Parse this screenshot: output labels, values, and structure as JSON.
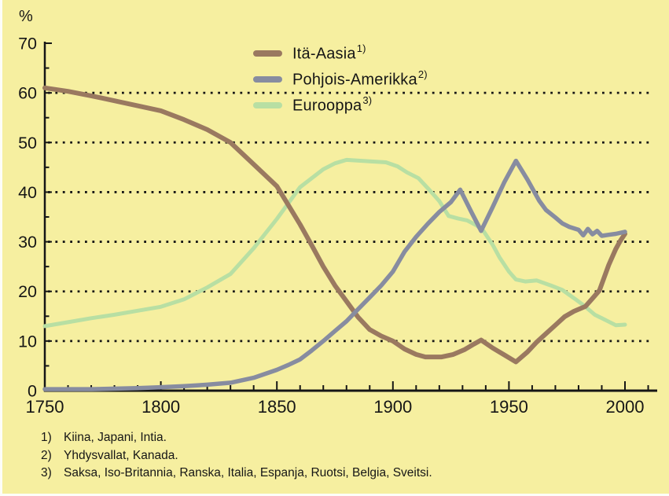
{
  "page": {
    "background_color": "#f6efa0",
    "text_color": "#161616"
  },
  "chart_data": {
    "type": "line",
    "title": "",
    "xlabel": "",
    "ylabel": "%",
    "y_axis": {
      "unit_label": "%",
      "min": 0,
      "max": 70,
      "major_tick_step": 10,
      "minor_tick_step": 5,
      "major_ticks": [
        0,
        10,
        20,
        30,
        40,
        50,
        60,
        70
      ],
      "gridlines": [
        10,
        20,
        30,
        40,
        50,
        60
      ],
      "grid_style": "dotted"
    },
    "x_axis": {
      "min": 1750,
      "max": 2000,
      "major_tick_step": 50,
      "minor_tick_step": 10,
      "major_ticks": [
        1750,
        1800,
        1850,
        1900,
        1950,
        2000
      ]
    },
    "legend": [
      {
        "label": "Itä-Aasia",
        "footnote_ref": "1)",
        "color": "#9a7960"
      },
      {
        "label": "Pohjois-Amerikka",
        "footnote_ref": "2)",
        "color": "#878ca0"
      },
      {
        "label": "Eurooppa",
        "footnote_ref": "3)",
        "color": "#b8dfa3"
      }
    ],
    "series": [
      {
        "name": "Itä-Aasia",
        "color": "#9a7960",
        "stroke_width": 6,
        "z_index": 2,
        "points": [
          [
            1750,
            61
          ],
          [
            1760,
            60.3
          ],
          [
            1770,
            59.4
          ],
          [
            1780,
            58.4
          ],
          [
            1790,
            57.4
          ],
          [
            1800,
            56.4
          ],
          [
            1810,
            54.6
          ],
          [
            1820,
            52.6
          ],
          [
            1830,
            50
          ],
          [
            1840,
            45.6
          ],
          [
            1850,
            41.2
          ],
          [
            1860,
            33.5
          ],
          [
            1865,
            29.3
          ],
          [
            1870,
            25
          ],
          [
            1875,
            21.2
          ],
          [
            1880,
            18
          ],
          [
            1885,
            14.8
          ],
          [
            1890,
            12.3
          ],
          [
            1895,
            11
          ],
          [
            1900,
            10
          ],
          [
            1905,
            8.4
          ],
          [
            1910,
            7.3
          ],
          [
            1914,
            6.8
          ],
          [
            1921,
            6.8
          ],
          [
            1926,
            7.3
          ],
          [
            1931,
            8.3
          ],
          [
            1935,
            9.4
          ],
          [
            1938,
            10.2
          ],
          [
            1943,
            8.6
          ],
          [
            1948,
            7.2
          ],
          [
            1953,
            5.8
          ],
          [
            1958,
            7.8
          ],
          [
            1962,
            9.8
          ],
          [
            1966,
            11.5
          ],
          [
            1970,
            13.2
          ],
          [
            1974,
            14.9
          ],
          [
            1978,
            16
          ],
          [
            1983,
            17
          ],
          [
            1986,
            18.6
          ],
          [
            1989,
            20.2
          ],
          [
            1993,
            25.3
          ],
          [
            1996,
            28.5
          ],
          [
            1998,
            30.2
          ],
          [
            2000,
            31.6
          ]
        ]
      },
      {
        "name": "Pohjois-Amerikka",
        "color": "#878ca0",
        "stroke_width": 5.5,
        "z_index": 3,
        "points": [
          [
            1750,
            0.3
          ],
          [
            1770,
            0.3
          ],
          [
            1790,
            0.5
          ],
          [
            1800,
            0.7
          ],
          [
            1810,
            0.9
          ],
          [
            1820,
            1.2
          ],
          [
            1830,
            1.6
          ],
          [
            1840,
            2.6
          ],
          [
            1850,
            4.2
          ],
          [
            1855,
            5.2
          ],
          [
            1860,
            6.3
          ],
          [
            1865,
            8.1
          ],
          [
            1870,
            10
          ],
          [
            1875,
            12
          ],
          [
            1880,
            14
          ],
          [
            1885,
            16.4
          ],
          [
            1890,
            18.8
          ],
          [
            1895,
            21.2
          ],
          [
            1900,
            24
          ],
          [
            1905,
            28
          ],
          [
            1910,
            31
          ],
          [
            1915,
            33.6
          ],
          [
            1920,
            36
          ],
          [
            1925,
            38
          ],
          [
            1929,
            40.5
          ],
          [
            1934,
            35.8
          ],
          [
            1938,
            32.2
          ],
          [
            1943,
            37
          ],
          [
            1948,
            42
          ],
          [
            1953,
            46.3
          ],
          [
            1958,
            42.5
          ],
          [
            1963,
            38.3
          ],
          [
            1966,
            36.4
          ],
          [
            1970,
            34.9
          ],
          [
            1973,
            33.7
          ],
          [
            1976,
            33
          ],
          [
            1980,
            32.4
          ],
          [
            1982,
            31.3
          ],
          [
            1984,
            32.6
          ],
          [
            1986,
            31.5
          ],
          [
            1988,
            32.2
          ],
          [
            1990,
            31.2
          ],
          [
            1993,
            31.4
          ],
          [
            1996,
            31.6
          ],
          [
            2000,
            32
          ]
        ]
      },
      {
        "name": "Eurooppa",
        "color": "#b8dfa3",
        "stroke_width": 5,
        "z_index": 1,
        "points": [
          [
            1750,
            13
          ],
          [
            1760,
            13.8
          ],
          [
            1770,
            14.6
          ],
          [
            1780,
            15.3
          ],
          [
            1790,
            16.1
          ],
          [
            1800,
            16.9
          ],
          [
            1810,
            18.4
          ],
          [
            1820,
            20.8
          ],
          [
            1830,
            23.5
          ],
          [
            1840,
            28.7
          ],
          [
            1850,
            34.6
          ],
          [
            1860,
            41
          ],
          [
            1870,
            44.6
          ],
          [
            1875,
            45.8
          ],
          [
            1880,
            46.5
          ],
          [
            1890,
            46.2
          ],
          [
            1897,
            46
          ],
          [
            1902,
            45.2
          ],
          [
            1906,
            44
          ],
          [
            1911,
            42.8
          ],
          [
            1916,
            40.3
          ],
          [
            1920,
            38.2
          ],
          [
            1924,
            35.2
          ],
          [
            1928,
            34.7
          ],
          [
            1932,
            34.3
          ],
          [
            1936,
            33.3
          ],
          [
            1939,
            32.2
          ],
          [
            1943,
            29.4
          ],
          [
            1946,
            26.8
          ],
          [
            1950,
            24
          ],
          [
            1953,
            22.4
          ],
          [
            1957,
            22
          ],
          [
            1962,
            22.2
          ],
          [
            1968,
            21.2
          ],
          [
            1973,
            20.3
          ],
          [
            1979,
            18.3
          ],
          [
            1983,
            16.9
          ],
          [
            1987,
            15.3
          ],
          [
            1990,
            14.6
          ],
          [
            1993,
            13.9
          ],
          [
            1996,
            13.2
          ],
          [
            2000,
            13.3
          ]
        ]
      }
    ]
  },
  "footnotes": [
    {
      "marker": "1)",
      "text": "Kiina, Japani, Intia."
    },
    {
      "marker": "2)",
      "text": "Yhdysvallat, Kanada."
    },
    {
      "marker": "3)",
      "text": "Saksa, Iso-Britannia, Ranska, Italia, Espanja, Ruotsi, Belgia, Sveitsi."
    }
  ]
}
